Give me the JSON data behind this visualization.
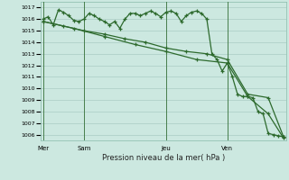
{
  "bg_color": "#cce8e0",
  "grid_color": "#aaccC4",
  "line_color": "#2d6a2d",
  "xlabel": "Pression niveau de la mer( hPa )",
  "ylim": [
    1005.5,
    1017.5
  ],
  "yticks": [
    1006,
    1007,
    1008,
    1009,
    1010,
    1011,
    1012,
    1013,
    1014,
    1015,
    1016,
    1017
  ],
  "day_labels": [
    "Mer",
    "Sam",
    "Jeu",
    "Ven"
  ],
  "day_positions": [
    0,
    8,
    24,
    36
  ],
  "vline_positions": [
    0,
    8,
    24,
    36
  ],
  "total_points": 48,
  "line1_x": [
    0,
    1,
    2,
    3,
    4,
    5,
    6,
    7,
    8,
    9,
    10,
    11,
    12,
    13,
    14,
    15,
    16,
    17,
    18,
    19,
    20,
    21,
    22,
    23,
    24,
    25,
    26,
    27,
    28,
    29,
    30,
    31,
    32,
    33,
    34,
    35,
    36,
    37,
    38,
    39,
    40,
    41,
    42,
    43,
    44,
    45,
    46,
    47
  ],
  "line1_y": [
    1016.0,
    1016.2,
    1015.5,
    1016.8,
    1016.6,
    1016.3,
    1015.9,
    1015.8,
    1016.0,
    1016.5,
    1016.3,
    1016.0,
    1015.8,
    1015.5,
    1015.8,
    1015.2,
    1016.0,
    1016.5,
    1016.5,
    1016.3,
    1016.5,
    1016.7,
    1016.5,
    1016.2,
    1016.6,
    1016.7,
    1016.5,
    1015.8,
    1016.3,
    1016.6,
    1016.7,
    1016.5,
    1016.0,
    1013.0,
    1012.5,
    1011.5,
    1012.2,
    1011.0,
    1009.5,
    1009.3,
    1009.3,
    1009.2,
    1008.0,
    1007.8,
    1006.1,
    1006.0,
    1005.9,
    1005.8
  ],
  "line2_x": [
    0,
    4,
    8,
    12,
    16,
    20,
    24,
    28,
    32,
    36,
    40,
    44,
    47
  ],
  "line2_y": [
    1015.8,
    1015.4,
    1015.0,
    1014.7,
    1014.3,
    1014.0,
    1013.5,
    1013.2,
    1013.0,
    1012.5,
    1009.5,
    1009.2,
    1005.8
  ],
  "line3_x": [
    0,
    6,
    12,
    18,
    24,
    30,
    36,
    40,
    44,
    47
  ],
  "line3_y": [
    1015.8,
    1015.2,
    1014.5,
    1013.8,
    1013.2,
    1012.5,
    1012.2,
    1009.3,
    1007.8,
    1005.7
  ]
}
